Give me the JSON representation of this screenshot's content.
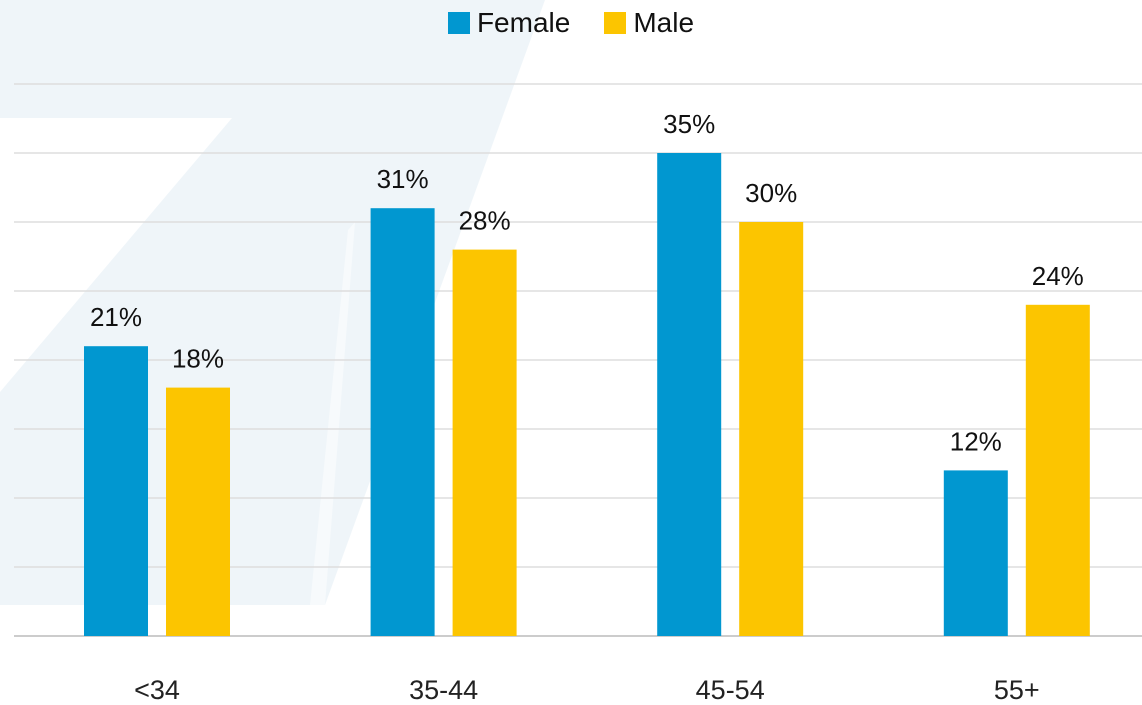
{
  "chart_data": {
    "type": "bar",
    "categories": [
      "<34",
      "35-44",
      "45-54",
      "55+"
    ],
    "series": [
      {
        "name": "Female",
        "values": [
          21,
          31,
          35,
          12
        ],
        "labels": [
          "21%",
          "31%",
          "35%",
          "12%"
        ],
        "color": "#0197d0"
      },
      {
        "name": "Male",
        "values": [
          18,
          28,
          30,
          24
        ],
        "labels": [
          "18%",
          "28%",
          "30%",
          "24%"
        ],
        "color": "#fcc500"
      }
    ],
    "title": "",
    "xlabel": "",
    "ylabel": "",
    "ylim": [
      0,
      40
    ],
    "grid": true,
    "legend": "top-center",
    "value_suffix": "%"
  }
}
